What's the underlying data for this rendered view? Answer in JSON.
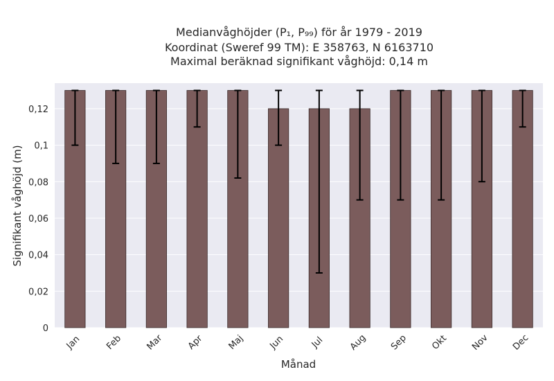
{
  "chart_data": {
    "type": "bar",
    "title_lines": [
      "Medianvåghöjder (P₁, P₉₉) för år 1979 - 2019",
      "Koordinat (Sweref 99 TM): E 358763, N 6163710",
      "Maximal beräknad signifikant våghöjd: 0,14 m"
    ],
    "xlabel": "Månad",
    "ylabel": "Signifikant våghöjd (m)",
    "categories": [
      "Jan",
      "Feb",
      "Mar",
      "Apr",
      "Maj",
      "Jun",
      "Jul",
      "Aug",
      "Sep",
      "Okt",
      "Nov",
      "Dec"
    ],
    "values": [
      0.13,
      0.13,
      0.13,
      0.13,
      0.13,
      0.12,
      0.12,
      0.12,
      0.13,
      0.13,
      0.13,
      0.13
    ],
    "error_low": [
      0.1,
      0.09,
      0.09,
      0.11,
      0.082,
      0.1,
      0.03,
      0.07,
      0.07,
      0.07,
      0.08,
      0.11
    ],
    "error_high": [
      0.13,
      0.13,
      0.13,
      0.13,
      0.13,
      0.13,
      0.13,
      0.13,
      0.13,
      0.13,
      0.13,
      0.13
    ],
    "ylim": [
      0,
      0.134
    ],
    "yticks": [
      0,
      0.02,
      0.04,
      0.06,
      0.08,
      0.1,
      0.12
    ],
    "ytick_labels": [
      "0",
      "0,02",
      "0,04",
      "0,06",
      "0,08",
      "0,1",
      "0,12"
    ],
    "grid": true,
    "colors": {
      "bar": "#7b5c5c",
      "bar_edge": "#3a2a2a",
      "error": "#000000",
      "plot_bg": "#eaeaf2",
      "grid": "#ffffff"
    }
  }
}
